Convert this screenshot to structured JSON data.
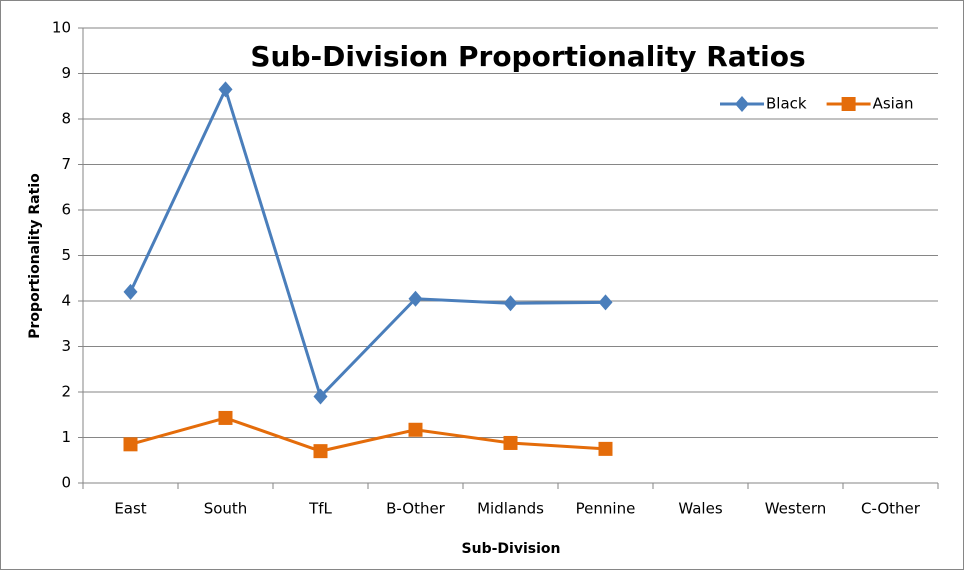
{
  "chart_data": {
    "type": "line",
    "title": "Sub-Division Proportionality Ratios",
    "x_label": "Sub-Division",
    "y_label": "Proportionality Ratio",
    "categories": [
      "East",
      "South",
      "TfL",
      "B-Other",
      "Midlands",
      "Pennine",
      "Wales",
      "Western",
      "C-Other"
    ],
    "series": [
      {
        "name": "Black",
        "color": "#4a7ebb",
        "marker": "diamond",
        "values": [
          4.2,
          8.65,
          1.9,
          4.05,
          3.95,
          3.97,
          null,
          null,
          null
        ]
      },
      {
        "name": "Asian",
        "color": "#e46c0a",
        "marker": "square",
        "values": [
          0.85,
          1.43,
          0.7,
          1.17,
          0.88,
          0.75,
          null,
          null,
          null
        ]
      }
    ],
    "ylim": [
      0,
      10
    ],
    "yticks": [
      0,
      1,
      2,
      3,
      4,
      5,
      6,
      7,
      8,
      9,
      10
    ],
    "grid": true,
    "legend": "top-right"
  }
}
